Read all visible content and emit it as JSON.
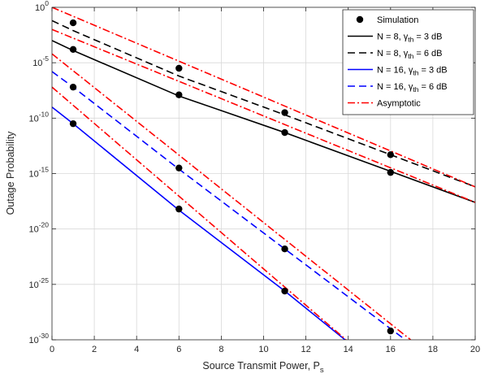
{
  "chart_data": {
    "type": "line",
    "title": "",
    "xlabel": "Source Transmit Power, P",
    "xlabel_sub": "s",
    "ylabel": "Outage Probability",
    "xlim": [
      0,
      20
    ],
    "ylim_log10": [
      -30,
      0
    ],
    "yscale": "log",
    "grid": true,
    "legend_position": "top-right",
    "x_ticks": [
      "0",
      "2",
      "4",
      "6",
      "8",
      "10",
      "12",
      "14",
      "16",
      "18",
      "20"
    ],
    "y_ticks": [
      {
        "base": "10",
        "exp": "0"
      },
      {
        "base": "10",
        "exp": "-5"
      },
      {
        "base": "10",
        "exp": "-10"
      },
      {
        "base": "10",
        "exp": "-15"
      },
      {
        "base": "10",
        "exp": "-20"
      },
      {
        "base": "10",
        "exp": "-25"
      },
      {
        "base": "10",
        "exp": "-30"
      }
    ],
    "legend": [
      {
        "label_pre": "Simulation",
        "label_sub": "",
        "label_post": ""
      },
      {
        "label_pre": "N = 8, γ",
        "label_sub": "th",
        "label_post": " = 3 dB"
      },
      {
        "label_pre": "N = 8, γ",
        "label_sub": "th",
        "label_post": " = 6 dB"
      },
      {
        "label_pre": "N = 16, γ",
        "label_sub": "th",
        "label_post": " = 3 dB"
      },
      {
        "label_pre": "N = 16,  γ",
        "label_sub": "th",
        "label_post": " = 6 dB"
      },
      {
        "label_pre": "Asymptotic",
        "label_sub": "",
        "label_post": ""
      }
    ],
    "series": [
      {
        "key": "n8_3db",
        "color": "#000000",
        "dash": "solid",
        "points": [
          [
            0,
            -3.0
          ],
          [
            1,
            -3.9
          ],
          [
            6,
            -8.0
          ],
          [
            11,
            -11.3
          ],
          [
            16,
            -14.8
          ],
          [
            20,
            -17.6
          ]
        ]
      },
      {
        "key": "n8_6db",
        "color": "#000000",
        "dash": "dashed",
        "points": [
          [
            0,
            -1.2
          ],
          [
            1,
            -2.1
          ],
          [
            6,
            -6.2
          ],
          [
            11,
            -9.7
          ],
          [
            16,
            -13.3
          ],
          [
            20,
            -16.2
          ]
        ]
      },
      {
        "key": "n16_3db",
        "color": "#0000ff",
        "dash": "solid",
        "points": [
          [
            0,
            -9.0
          ],
          [
            1,
            -10.5
          ],
          [
            6,
            -18.3
          ],
          [
            11,
            -25.6
          ],
          [
            13.85,
            -30.0
          ]
        ]
      },
      {
        "key": "n16_6db",
        "color": "#0000ff",
        "dash": "dashed",
        "points": [
          [
            0,
            -5.8
          ],
          [
            1,
            -7.2
          ],
          [
            6,
            -14.6
          ],
          [
            11,
            -21.8
          ],
          [
            16,
            -29.0
          ],
          [
            16.7,
            -30.0
          ]
        ]
      },
      {
        "key": "asym_n8_3db",
        "color": "#ff0000",
        "dash": "dashdot",
        "points": [
          [
            0,
            -2.0
          ],
          [
            20,
            -17.6
          ]
        ]
      },
      {
        "key": "asym_n8_6db",
        "color": "#ff0000",
        "dash": "dashdot",
        "points": [
          [
            0,
            0.0
          ],
          [
            20,
            -16.2
          ]
        ]
      },
      {
        "key": "asym_n16_3db",
        "color": "#ff0000",
        "dash": "dashdot",
        "points": [
          [
            0,
            -7.2
          ],
          [
            13.9,
            -30.0
          ]
        ]
      },
      {
        "key": "asym_n16_6db",
        "color": "#ff0000",
        "dash": "dashdot",
        "points": [
          [
            0,
            -4.2
          ],
          [
            16.95,
            -30.0
          ]
        ]
      }
    ],
    "simulation_points": [
      [
        1,
        -1.4
      ],
      [
        6,
        -5.5
      ],
      [
        11,
        -9.5
      ],
      [
        16,
        -13.3
      ],
      [
        1,
        -3.8
      ],
      [
        6,
        -7.9
      ],
      [
        11,
        -11.3
      ],
      [
        16,
        -14.9
      ],
      [
        1,
        -7.2
      ],
      [
        6,
        -14.5
      ],
      [
        11,
        -21.8
      ],
      [
        16,
        -29.2
      ],
      [
        1,
        -10.5
      ],
      [
        6,
        -18.2
      ],
      [
        11,
        -25.6
      ]
    ]
  }
}
